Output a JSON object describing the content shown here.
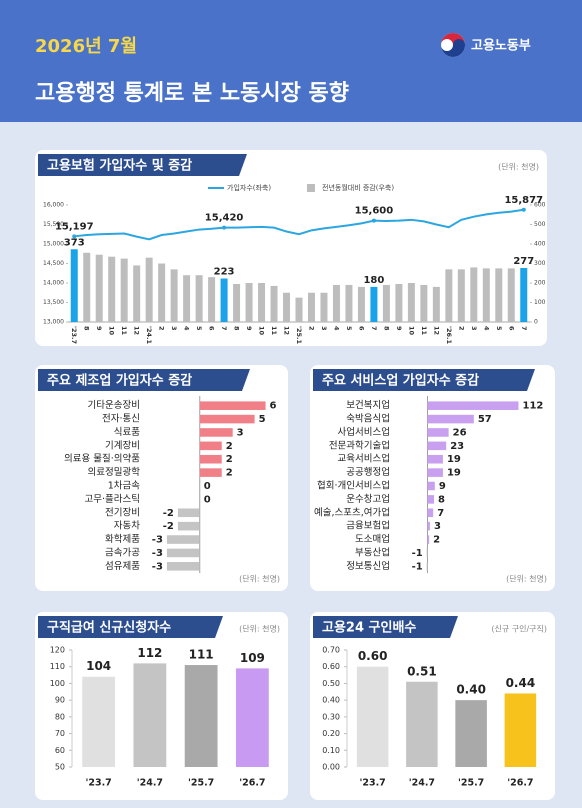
{
  "header": {
    "date": "2026년 7월",
    "ministry": "고용노동부",
    "title": "고용행정 통계로 본 노동시장 동향"
  },
  "chart_data": [
    {
      "type": "bar_line",
      "title": "고용보험 가입자수 및 증감",
      "unit": "(단위: 천명)",
      "categories": [
        "'23.7",
        "8",
        "9",
        "10",
        "11",
        "12",
        "'24.1",
        "2",
        "3",
        "4",
        "5",
        "6",
        "7",
        "8",
        "9",
        "10",
        "11",
        "12",
        "'25.1",
        "2",
        "3",
        "4",
        "5",
        "6",
        "7",
        "8",
        "9",
        "10",
        "11",
        "12",
        "'26.1",
        "2",
        "3",
        "4",
        "5",
        "6",
        "7"
      ],
      "series": [
        {
          "name": "가입자수(좌축)",
          "color": "#2ba6e0",
          "kind": "line",
          "values": [
            15197,
            15230,
            15250,
            15260,
            15270,
            15190,
            15120,
            15230,
            15270,
            15320,
            15370,
            15390,
            15420,
            15420,
            15430,
            15440,
            15420,
            15320,
            15250,
            15350,
            15400,
            15440,
            15480,
            15530,
            15600,
            15590,
            15600,
            15620,
            15580,
            15500,
            15430,
            15620,
            15700,
            15760,
            15800,
            15830,
            15877
          ],
          "value_labels": [
            "15,197",
            null,
            null,
            null,
            null,
            null,
            null,
            null,
            null,
            null,
            null,
            null,
            "15,420",
            null,
            null,
            null,
            null,
            null,
            null,
            null,
            null,
            null,
            null,
            null,
            "15,600",
            null,
            null,
            null,
            null,
            null,
            null,
            null,
            null,
            null,
            null,
            null,
            "15,877"
          ]
        },
        {
          "name": "전년동월대비 증감(우축)",
          "color": "#bdbdbd",
          "kind": "bar",
          "axis": "y2",
          "values": [
            373,
            355,
            345,
            335,
            325,
            290,
            330,
            300,
            270,
            240,
            240,
            230,
            223,
            195,
            200,
            200,
            185,
            150,
            125,
            150,
            150,
            190,
            190,
            180,
            180,
            190,
            195,
            200,
            190,
            180,
            270,
            270,
            280,
            275,
            275,
            275,
            277
          ],
          "value_labels": [
            "373",
            null,
            null,
            null,
            null,
            null,
            null,
            null,
            null,
            null,
            null,
            null,
            "223",
            null,
            null,
            null,
            null,
            null,
            null,
            null,
            null,
            null,
            null,
            null,
            "180",
            null,
            null,
            null,
            null,
            null,
            null,
            null,
            null,
            null,
            null,
            null,
            "277"
          ]
        }
      ],
      "highlight": {
        "indices": [
          0,
          12,
          24,
          36
        ],
        "color": "#1aa3e8"
      },
      "ylim": [
        13000,
        16000
      ],
      "yticks": [
        {
          "value": 13000,
          "label": "13,000"
        },
        {
          "value": 13500,
          "label": "13,500"
        },
        {
          "value": 14000,
          "label": "14,000"
        },
        {
          "value": 14500,
          "label": "14,500"
        },
        {
          "value": 15000,
          "label": "15,000"
        },
        {
          "value": 15500,
          "label": "15,500"
        },
        {
          "value": 16000,
          "label": "16,000"
        }
      ],
      "y2lim": [
        0,
        600
      ],
      "y2ticks": [
        0,
        100,
        200,
        300,
        400,
        500,
        600
      ]
    },
    {
      "type": "hbar",
      "title": "주요 제조업 가입자수 증감",
      "unit": "(단위: 천명)",
      "categories": [
        "기타운송장비",
        "전자·통신",
        "식료품",
        "기계장비",
        "의료용 물질·의약품",
        "의료정밀광학",
        "1차금속",
        "고무·플라스틱",
        "전기장비",
        "자동차",
        "화학제품",
        "금속가공",
        "섬유제품"
      ],
      "values": [
        6,
        5,
        3,
        2,
        2,
        2,
        0,
        0,
        -2,
        -2,
        -3,
        -3,
        -3
      ],
      "positive_color": "#f07f88",
      "negative_color": "#c4c4c4",
      "xlim": [
        -5,
        7.5
      ]
    },
    {
      "type": "hbar",
      "title": "주요 서비스업 가입자수 증감",
      "unit": "(단위: 천명)",
      "categories": [
        "보건복지업",
        "숙박음식업",
        "사업서비스업",
        "전문과학기술업",
        "교육서비스업",
        "공공행정업",
        "협회·개인서비스업",
        "운수창고업",
        "예술,스포츠,여가업",
        "금융보험업",
        "도소매업",
        "부동산업",
        "정보통신업"
      ],
      "values": [
        112,
        57,
        26,
        23,
        19,
        19,
        9,
        8,
        7,
        3,
        2,
        -1,
        -1
      ],
      "positive_color": "#c9a0f0",
      "negative_color": "#c4c4c4",
      "xlim": [
        -40,
        120
      ]
    },
    {
      "type": "bar",
      "title": "구직급여 신규신청자수",
      "unit": "(단위: 천명)",
      "categories": [
        "'23.7",
        "'24.7",
        "'25.7",
        "'26.7"
      ],
      "values": [
        104,
        112,
        111,
        109
      ],
      "colors": [
        "#e0e0e0",
        "#c4c4c4",
        "#a9a9a9",
        "#c99af2"
      ],
      "ylim": [
        50,
        120
      ],
      "yticks": [
        50,
        60,
        70,
        80,
        90,
        100,
        110,
        120
      ]
    },
    {
      "type": "bar",
      "title": "고용24 구인배수",
      "unit": "(신규 구인/구직)",
      "categories": [
        "'23.7",
        "'24.7",
        "'25.7",
        "'26.7"
      ],
      "values": [
        0.6,
        0.51,
        0.4,
        0.44
      ],
      "value_labels": [
        "0.60",
        "0.51",
        "0.40",
        "0.44"
      ],
      "colors": [
        "#e0e0e0",
        "#c4c4c4",
        "#a9a9a9",
        "#f8c21c"
      ],
      "ylim": [
        0,
        0.7
      ],
      "yticks": [
        {
          "value": 0,
          "label": "0.00"
        },
        {
          "value": 0.1,
          "label": "0.10"
        },
        {
          "value": 0.2,
          "label": "0.20"
        },
        {
          "value": 0.3,
          "label": "0.30"
        },
        {
          "value": 0.4,
          "label": "0.40"
        },
        {
          "value": 0.5,
          "label": "0.50"
        },
        {
          "value": 0.6,
          "label": "0.60"
        },
        {
          "value": 0.7,
          "label": "0.70"
        }
      ]
    }
  ]
}
